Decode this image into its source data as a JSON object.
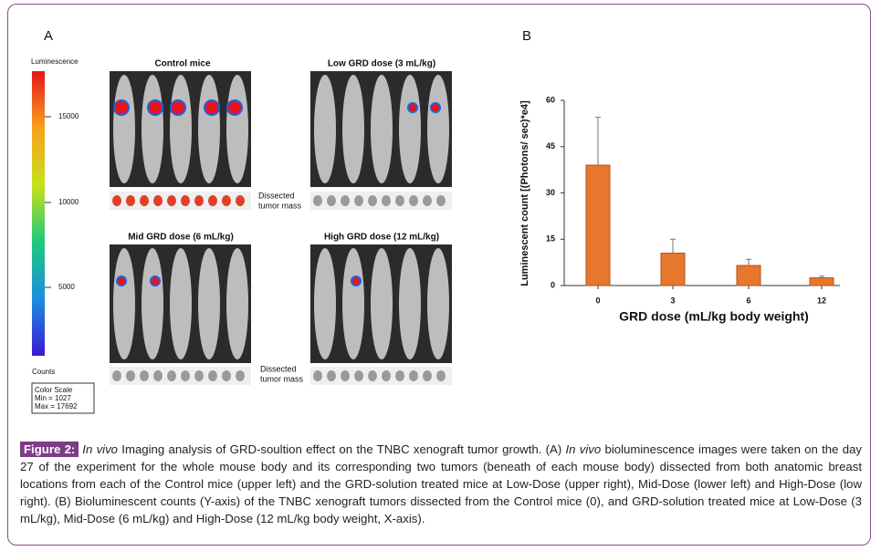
{
  "panel_a": {
    "label": "A",
    "scale_title": "Luminescence",
    "scale_ticks": [
      "15000",
      "10000",
      "5000"
    ],
    "counts": "Counts",
    "color_scale": [
      "Color Scale",
      "Min = 1027",
      "Max = 17692"
    ],
    "groups": [
      "Control mice",
      "Low GRD dose (3 mL/kg)",
      "Mid GRD dose (6 mL/kg)",
      "High GRD dose (12 mL/kg)"
    ],
    "dissected": [
      "Dissected",
      "tumor mass"
    ]
  },
  "chart_data": {
    "type": "bar",
    "label": "B",
    "categories": [
      "0",
      "3",
      "6",
      "12"
    ],
    "values": [
      39,
      10.5,
      6.5,
      2.5
    ],
    "errors": [
      15.5,
      4.5,
      2,
      0.5
    ],
    "color": "#e8772e",
    "ylim": [
      0,
      60
    ],
    "yticks": [
      0,
      15,
      30,
      45,
      60
    ],
    "x_label": "GRD dose (mL/kg body weight)",
    "y_label": "Luminescent count [(Photons/ sec)*e4]"
  },
  "caption": {
    "label": "Figure 2:",
    "parts": [
      {
        "text": "In vivo",
        "italic": true
      },
      {
        "text": " Imaging analysis of GRD-soultion effect on the TNBC xenograft tumor growth. (A) ",
        "italic": false
      },
      {
        "text": "In vivo",
        "italic": true
      },
      {
        "text": " bioluminescence images were taken on the day 27 of the experiment for the whole mouse body and its corresponding two tumors (beneath of each mouse body) dissected from both anatomic breast locations from each of the Control mice (upper left) and the GRD-solution treated mice at Low-Dose (upper right), Mid-Dose (lower left) and High-Dose (low right). (B) Bioluminescent counts (Y-axis) of the TNBC xenograft tumors dissected from the Control mice (0), and GRD-solution treated mice at Low-Dose (3 mL/kg), Mid-Dose (6 mL/kg) and High-Dose (12 mL/kg body weight, X-axis).",
        "italic": false
      }
    ]
  }
}
